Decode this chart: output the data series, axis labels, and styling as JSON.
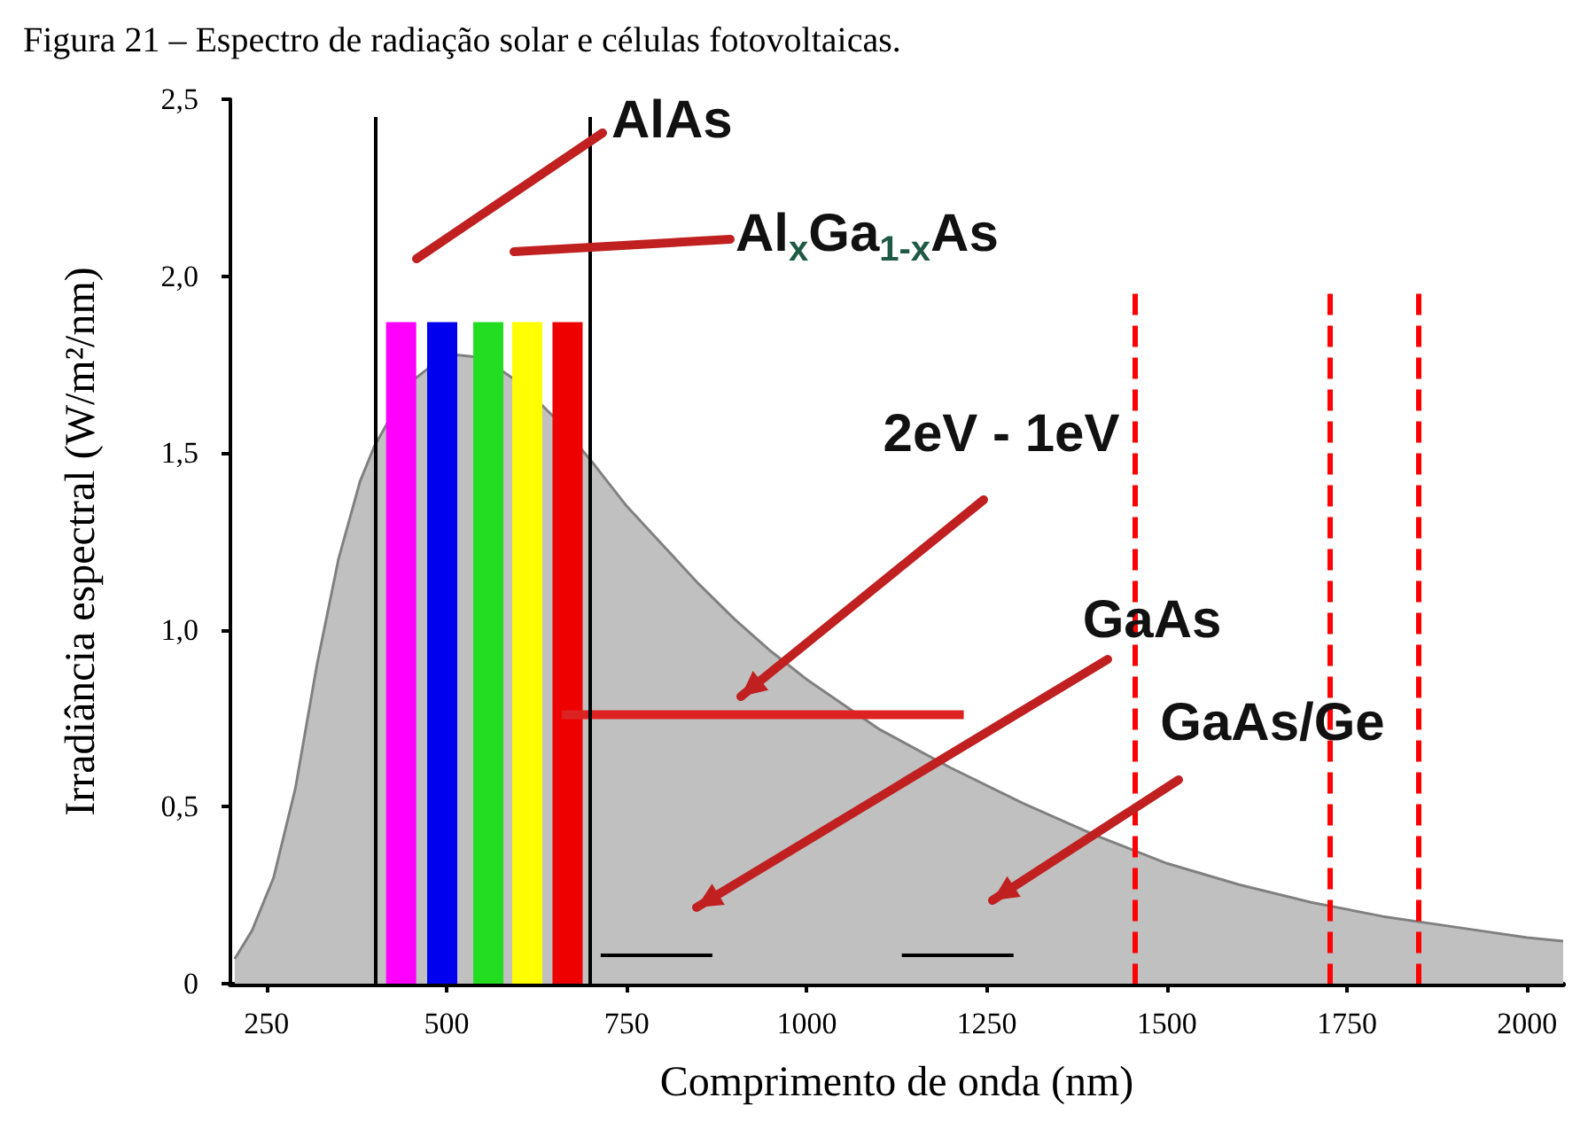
{
  "chart_data": {
    "type": "area",
    "title": "Figura 21 – Espectro de radiação solar e células fotovoltaicas.",
    "xlabel": "Comprimento de onda (nm)",
    "ylabel": "Irradiância espectral (W/m²/nm)",
    "xlim": [
      200,
      2050
    ],
    "xticks": [
      250,
      500,
      750,
      1000,
      1250,
      1500,
      1750,
      2000
    ],
    "ylim": [
      0,
      2.5
    ],
    "yticks": [
      {
        "value": 0,
        "label": "0"
      },
      {
        "value": 0.5,
        "label": "0,5"
      },
      {
        "value": 1,
        "label": "1,0"
      },
      {
        "value": 1.5,
        "label": "1,5"
      },
      {
        "value": 2,
        "label": "2,0"
      },
      {
        "value": 2.5,
        "label": "2,5"
      }
    ],
    "grid": false,
    "series": [
      {
        "color": "#c0c0c0",
        "x": [
          206,
          230,
          260,
          290,
          320,
          350,
          380,
          400,
          450,
          500,
          550,
          600,
          650,
          700,
          750,
          800,
          850,
          900,
          950,
          1000,
          1100,
          1200,
          1300,
          1400,
          1500,
          1600,
          1700,
          1800,
          1900,
          2000,
          2050
        ],
        "values": [
          0.07,
          0.15,
          0.3,
          0.55,
          0.9,
          1.2,
          1.42,
          1.52,
          1.7,
          1.78,
          1.77,
          1.7,
          1.6,
          1.48,
          1.35,
          1.24,
          1.13,
          1.03,
          0.94,
          0.86,
          0.72,
          0.61,
          0.51,
          0.42,
          0.34,
          0.28,
          0.23,
          0.19,
          0.16,
          0.13,
          0.12
        ]
      },
      {
        "type": "bar",
        "x": [
          437,
          494,
          558,
          612,
          668
        ],
        "values": [
          1.87,
          1.87,
          1.87,
          1.87,
          1.87
        ],
        "colors": [
          "#ff00ff",
          "#0000ee",
          "#22dd22",
          "#ffff00",
          "#ee0000"
        ]
      },
      {
        "type": "line",
        "color": "#dd2222",
        "marker": "none",
        "x": [
          660,
          1218
        ],
        "values": [
          0.76,
          0.76
        ]
      },
      {
        "type": "line",
        "color": "#000000",
        "marker": "none",
        "x": [
          714,
          869
        ],
        "values": [
          0.08,
          0.08
        ]
      },
      {
        "type": "line",
        "color": "#000000",
        "marker": "none",
        "x": [
          1132,
          1287
        ],
        "values": [
          0.08,
          0.08
        ]
      }
    ],
    "ref_lines": [
      {
        "axis": "x",
        "value": 400,
        "color": "#000000",
        "line_style": "solid"
      },
      {
        "axis": "x",
        "value": 700,
        "color": "#000000",
        "line_style": "solid"
      },
      {
        "axis": "x",
        "value": 1455,
        "color": "#ff0000",
        "line_style": "dashed"
      },
      {
        "axis": "x",
        "value": 1725,
        "color": "#ff0000",
        "line_style": "dashed"
      },
      {
        "axis": "x",
        "value": 1850,
        "color": "#ff0000",
        "line_style": "dashed"
      }
    ],
    "annotations": [
      "AlAs",
      "Al$_{x}$Ga$_{1-x}$As",
      "2eV - 1eV",
      "GaAs",
      "GaAs/Ge"
    ]
  }
}
